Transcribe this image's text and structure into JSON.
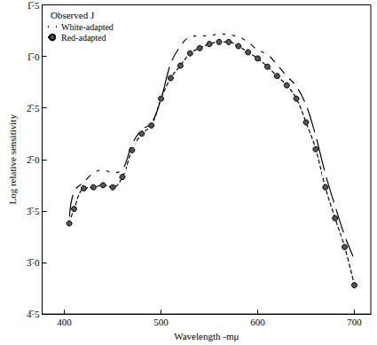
{
  "chart_data": {
    "type": "line",
    "title": "Observed J",
    "x_label": "Wavelength -mμ",
    "y_label": "Log relative sensitivity",
    "x": [
      405,
      410,
      420,
      430,
      440,
      450,
      460,
      470,
      480,
      490,
      500,
      510,
      520,
      530,
      540,
      550,
      560,
      570,
      580,
      590,
      600,
      610,
      620,
      630,
      640,
      650,
      660,
      670,
      680,
      690,
      700
    ],
    "series": [
      {
        "name": "White-adapted",
        "color": "#000000",
        "marker": "open_circle",
        "line_style": "solid",
        "values": [
          -2.59,
          -2.31,
          -2.22,
          -2.13,
          -2.1,
          -2.13,
          -2.1,
          -1.85,
          -1.71,
          -1.65,
          -1.41,
          -1.07,
          -0.9,
          -0.81,
          -0.8,
          -0.8,
          -0.78,
          -0.79,
          -0.81,
          -0.86,
          -0.94,
          -0.98,
          -1.08,
          -1.19,
          -1.29,
          -1.47,
          -1.77,
          -2.14,
          -2.45,
          -2.74,
          -2.97
        ]
      },
      {
        "name": "Red-adapted",
        "color": "#000000",
        "marker": "half_filled_circle",
        "line_style": "dashed",
        "values": [
          -2.62,
          -2.48,
          -2.28,
          -2.27,
          -2.25,
          -2.27,
          -2.17,
          -1.91,
          -1.75,
          -1.67,
          -1.41,
          -1.21,
          -1.09,
          -0.97,
          -0.92,
          -0.88,
          -0.86,
          -0.86,
          -0.9,
          -0.96,
          -1.02,
          -1.1,
          -1.19,
          -1.28,
          -1.41,
          -1.64,
          -1.9,
          -2.27,
          -2.57,
          -2.85,
          -3.22
        ]
      }
    ],
    "xlim": [
      377,
      717
    ],
    "xticks": [
      400,
      500,
      600,
      700
    ],
    "ylim": [
      -3.5,
      -0.5
    ],
    "yticks": [
      {
        "value": -3.5,
        "label": "4̅·5"
      },
      {
        "value": -3.0,
        "label": "3̅·0"
      },
      {
        "value": -2.5,
        "label": "3̅·5"
      },
      {
        "value": -2.0,
        "label": "2̅·0"
      },
      {
        "value": -1.5,
        "label": "2̅·5"
      },
      {
        "value": -1.0,
        "label": "1̅·0"
      },
      {
        "value": -0.5,
        "label": "1̅·5"
      }
    ],
    "grid": false,
    "legend": "upper left"
  }
}
